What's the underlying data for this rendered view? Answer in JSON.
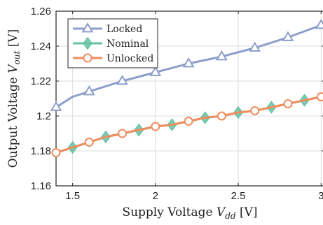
{
  "chart_data": {
    "type": "line",
    "title": "",
    "xlabel": "Supply Voltage V_dd [V]",
    "ylabel": "Output Voltage V_out [V]",
    "xlabel_main": "Supply Voltage ",
    "xlabel_var": "V",
    "xlabel_sub": "dd",
    "xlabel_unit": " [V]",
    "ylabel_main": "Output Voltage ",
    "ylabel_var": "V",
    "ylabel_sub": "out",
    "ylabel_unit": " [V]",
    "xlim": [
      1.4,
      3.02
    ],
    "ylim": [
      1.16,
      1.26
    ],
    "xticks": [
      1.5,
      2,
      2.5,
      3
    ],
    "xtick_labels": [
      "1.5",
      "2",
      "2.5",
      "3"
    ],
    "yticks": [
      1.16,
      1.18,
      1.2,
      1.22,
      1.24,
      1.26
    ],
    "ytick_labels": [
      "1.16",
      "1.18",
      "1.2",
      "1.22",
      "1.24",
      "1.26"
    ],
    "grid": true,
    "legend_position": "top-left",
    "series": [
      {
        "name": "Locked",
        "color": "#8c9fcb",
        "marker": "triangle",
        "x": [
          1.4,
          1.5,
          1.6,
          1.8,
          2.0,
          2.2,
          2.4,
          2.6,
          2.8,
          3.0
        ],
        "y": [
          1.205,
          1.211,
          1.214,
          1.22,
          1.225,
          1.23,
          1.234,
          1.239,
          1.245,
          1.252
        ],
        "marker_x": [
          1.4,
          1.6,
          1.8,
          2.0,
          2.2,
          2.4,
          2.6,
          2.8,
          3.0
        ],
        "marker_y": [
          1.205,
          1.214,
          1.22,
          1.225,
          1.23,
          1.234,
          1.239,
          1.245,
          1.252
        ]
      },
      {
        "name": "Nominal",
        "color": "#66c2a5",
        "marker": "diamond",
        "x": [
          1.4,
          1.5,
          1.6,
          1.7,
          1.8,
          1.9,
          2.0,
          2.1,
          2.2,
          2.3,
          2.4,
          2.5,
          2.6,
          2.7,
          2.8,
          2.9,
          3.0
        ],
        "y": [
          1.179,
          1.182,
          1.185,
          1.188,
          1.19,
          1.192,
          1.194,
          1.195,
          1.197,
          1.199,
          1.2,
          1.202,
          1.203,
          1.205,
          1.207,
          1.209,
          1.211
        ],
        "marker_x": [
          1.5,
          1.7,
          1.9,
          2.1,
          2.3,
          2.5,
          2.7,
          2.9
        ],
        "marker_y": [
          1.182,
          1.188,
          1.192,
          1.195,
          1.199,
          1.202,
          1.205,
          1.209
        ]
      },
      {
        "name": "Unlocked",
        "color": "#f08c5e",
        "marker": "circle",
        "x": [
          1.4,
          1.5,
          1.6,
          1.7,
          1.8,
          1.9,
          2.0,
          2.1,
          2.2,
          2.3,
          2.4,
          2.5,
          2.6,
          2.7,
          2.8,
          2.9,
          3.0
        ],
        "y": [
          1.179,
          1.182,
          1.185,
          1.188,
          1.19,
          1.192,
          1.194,
          1.195,
          1.197,
          1.199,
          1.2,
          1.202,
          1.203,
          1.205,
          1.207,
          1.209,
          1.211
        ],
        "marker_x": [
          1.4,
          1.6,
          1.8,
          2.0,
          2.2,
          2.4,
          2.6,
          2.8,
          3.0
        ],
        "marker_y": [
          1.179,
          1.185,
          1.19,
          1.194,
          1.197,
          1.2,
          1.203,
          1.207,
          1.211
        ]
      }
    ]
  }
}
